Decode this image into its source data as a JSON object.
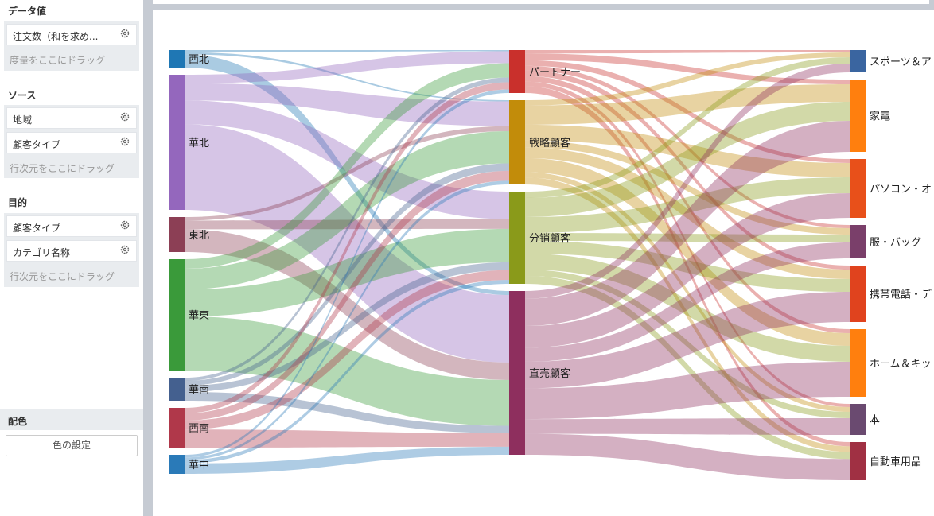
{
  "panel": {
    "data_value": {
      "title": "データ値",
      "fields": [
        "注文数（和を求め..."
      ],
      "hint": "度量をここにドラッグ"
    },
    "source": {
      "title": "ソース",
      "fields": [
        "地域",
        "顧客タイプ"
      ],
      "hint": "行次元をここにドラッグ"
    },
    "target": {
      "title": "目的",
      "fields": [
        "顧客タイプ",
        "カテゴリ名称"
      ],
      "hint": "行次元をここにドラッグ"
    },
    "color": {
      "title": "配色",
      "button": "色の設定"
    }
  },
  "chart_data": {
    "type": "sankey",
    "nodes_level1": [
      {
        "name": "西北",
        "color": "#1f77b4"
      },
      {
        "name": "華北",
        "color": "#9467bd"
      },
      {
        "name": "東北",
        "color": "#8c3f55"
      },
      {
        "name": "華東",
        "color": "#3a9a3a"
      },
      {
        "name": "華南",
        "color": "#44608f"
      },
      {
        "name": "西南",
        "color": "#b0384a"
      },
      {
        "name": "華中",
        "color": "#2a7ab8"
      }
    ],
    "nodes_level2": [
      {
        "name": "パートナー",
        "color": "#c9302c"
      },
      {
        "name": "戦略顧客",
        "color": "#c28c0a"
      },
      {
        "name": "分销顧客",
        "color": "#8a9a1a"
      },
      {
        "name": "直売顧客",
        "color": "#8e2f5e"
      }
    ],
    "nodes_level3": [
      {
        "name": "スポーツ＆ア",
        "color": "#3a65a0"
      },
      {
        "name": "家電",
        "color": "#ff7f0e"
      },
      {
        "name": "パソコン・オ",
        "color": "#e8501a"
      },
      {
        "name": "服・バッグ",
        "color": "#7a3f6a"
      },
      {
        "name": "携帯電話・デ",
        "color": "#e0431e"
      },
      {
        "name": "ホーム＆キッ",
        "color": "#ff7f0e"
      },
      {
        "name": "本",
        "color": "#6a4a70"
      },
      {
        "name": "自動車用品",
        "color": "#a03043"
      }
    ]
  }
}
